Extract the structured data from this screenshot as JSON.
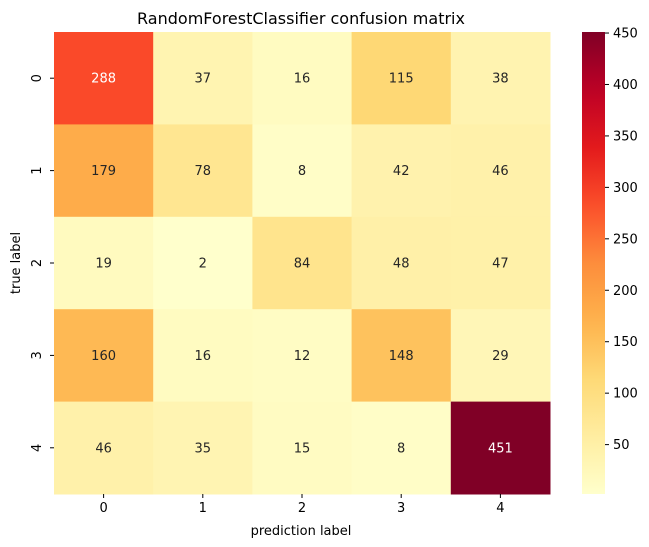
{
  "chart_data": {
    "type": "heatmap",
    "title": "RandomForestClassifier confusion matrix",
    "xlabel": "prediction label",
    "ylabel": "true label",
    "x_categories": [
      "0",
      "1",
      "2",
      "3",
      "4"
    ],
    "y_categories": [
      "0",
      "1",
      "2",
      "3",
      "4"
    ],
    "values": [
      [
        288,
        37,
        16,
        115,
        38
      ],
      [
        179,
        78,
        8,
        42,
        46
      ],
      [
        19,
        2,
        84,
        48,
        47
      ],
      [
        160,
        16,
        12,
        148,
        29
      ],
      [
        46,
        35,
        15,
        8,
        451
      ]
    ],
    "colormap": "YlOrRd",
    "vmin": 2,
    "vmax": 451,
    "colorbar_ticks": [
      50,
      100,
      150,
      200,
      250,
      300,
      350,
      400,
      450
    ],
    "grid": false,
    "legend": "colorbar-right"
  }
}
